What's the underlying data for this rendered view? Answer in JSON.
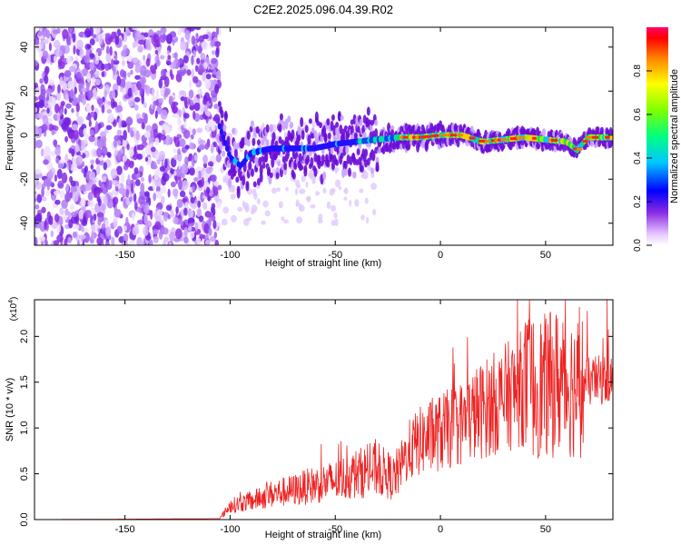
{
  "title": "C2E2.2025.096.04.39.R02",
  "chart_data": [
    {
      "type": "heatmap",
      "xlabel": "Height of straight line (km)",
      "ylabel": "Frequency (Hz)",
      "xlim": [
        -193,
        82
      ],
      "ylim": [
        -50,
        49
      ],
      "xticks": [
        -150,
        -100,
        -50,
        0,
        50
      ],
      "yticks": [
        -40,
        -20,
        0,
        20,
        40
      ],
      "colorbar": {
        "label": "Normalized spectral amplitude",
        "range": [
          0,
          1
        ],
        "ticks": [
          "0.0",
          "0.2",
          "0.4",
          "0.6",
          "0.8"
        ]
      },
      "ridge_centerline": [
        {
          "x": -105,
          "y": 4
        },
        {
          "x": -100,
          "y": -10
        },
        {
          "x": -95,
          "y": -14
        },
        {
          "x": -90,
          "y": -8
        },
        {
          "x": -80,
          "y": -6
        },
        {
          "x": -70,
          "y": -6
        },
        {
          "x": -60,
          "y": -6
        },
        {
          "x": -50,
          "y": -4
        },
        {
          "x": -40,
          "y": -3
        },
        {
          "x": -30,
          "y": -2
        },
        {
          "x": -20,
          "y": -1
        },
        {
          "x": -10,
          "y": -1
        },
        {
          "x": 0,
          "y": 0
        },
        {
          "x": 10,
          "y": 0
        },
        {
          "x": 20,
          "y": -3
        },
        {
          "x": 30,
          "y": -2
        },
        {
          "x": 40,
          "y": -1
        },
        {
          "x": 50,
          "y": -2
        },
        {
          "x": 60,
          "y": -3
        },
        {
          "x": 65,
          "y": -7
        },
        {
          "x": 70,
          "y": -1
        },
        {
          "x": 82,
          "y": -1
        }
      ],
      "noise_region_x": [
        -193,
        -105
      ]
    },
    {
      "type": "line",
      "xlabel": "Height of straight line (km)",
      "ylabel": "SNR (10 * v/v)",
      "scale_label": "(x10^4)",
      "xlim": [
        -193,
        82
      ],
      "ylim": [
        0,
        2.4
      ],
      "xticks": [
        -150,
        -100,
        -50,
        0,
        50
      ],
      "yticks": [
        "0.0",
        "0.5",
        "1.0",
        "1.5",
        "2.0"
      ],
      "color": "#ee2222",
      "envelope": [
        {
          "x": -193,
          "y": 0.0
        },
        {
          "x": -105,
          "y": 0.01
        },
        {
          "x": -100,
          "y": 0.15
        },
        {
          "x": -90,
          "y": 0.2
        },
        {
          "x": -80,
          "y": 0.28
        },
        {
          "x": -70,
          "y": 0.32
        },
        {
          "x": -60,
          "y": 0.38
        },
        {
          "x": -50,
          "y": 0.42
        },
        {
          "x": -40,
          "y": 0.5
        },
        {
          "x": -30,
          "y": 0.55
        },
        {
          "x": -22,
          "y": 0.45
        },
        {
          "x": -15,
          "y": 0.75
        },
        {
          "x": -10,
          "y": 0.85
        },
        {
          "x": 0,
          "y": 0.95
        },
        {
          "x": 10,
          "y": 1.05
        },
        {
          "x": 20,
          "y": 1.2
        },
        {
          "x": 30,
          "y": 1.32
        },
        {
          "x": 40,
          "y": 1.45
        },
        {
          "x": 50,
          "y": 1.45
        },
        {
          "x": 55,
          "y": 1.5
        },
        {
          "x": 60,
          "y": 1.48
        },
        {
          "x": 65,
          "y": 1.45
        },
        {
          "x": 70,
          "y": 1.5
        },
        {
          "x": 82,
          "y": 1.55
        }
      ]
    }
  ]
}
